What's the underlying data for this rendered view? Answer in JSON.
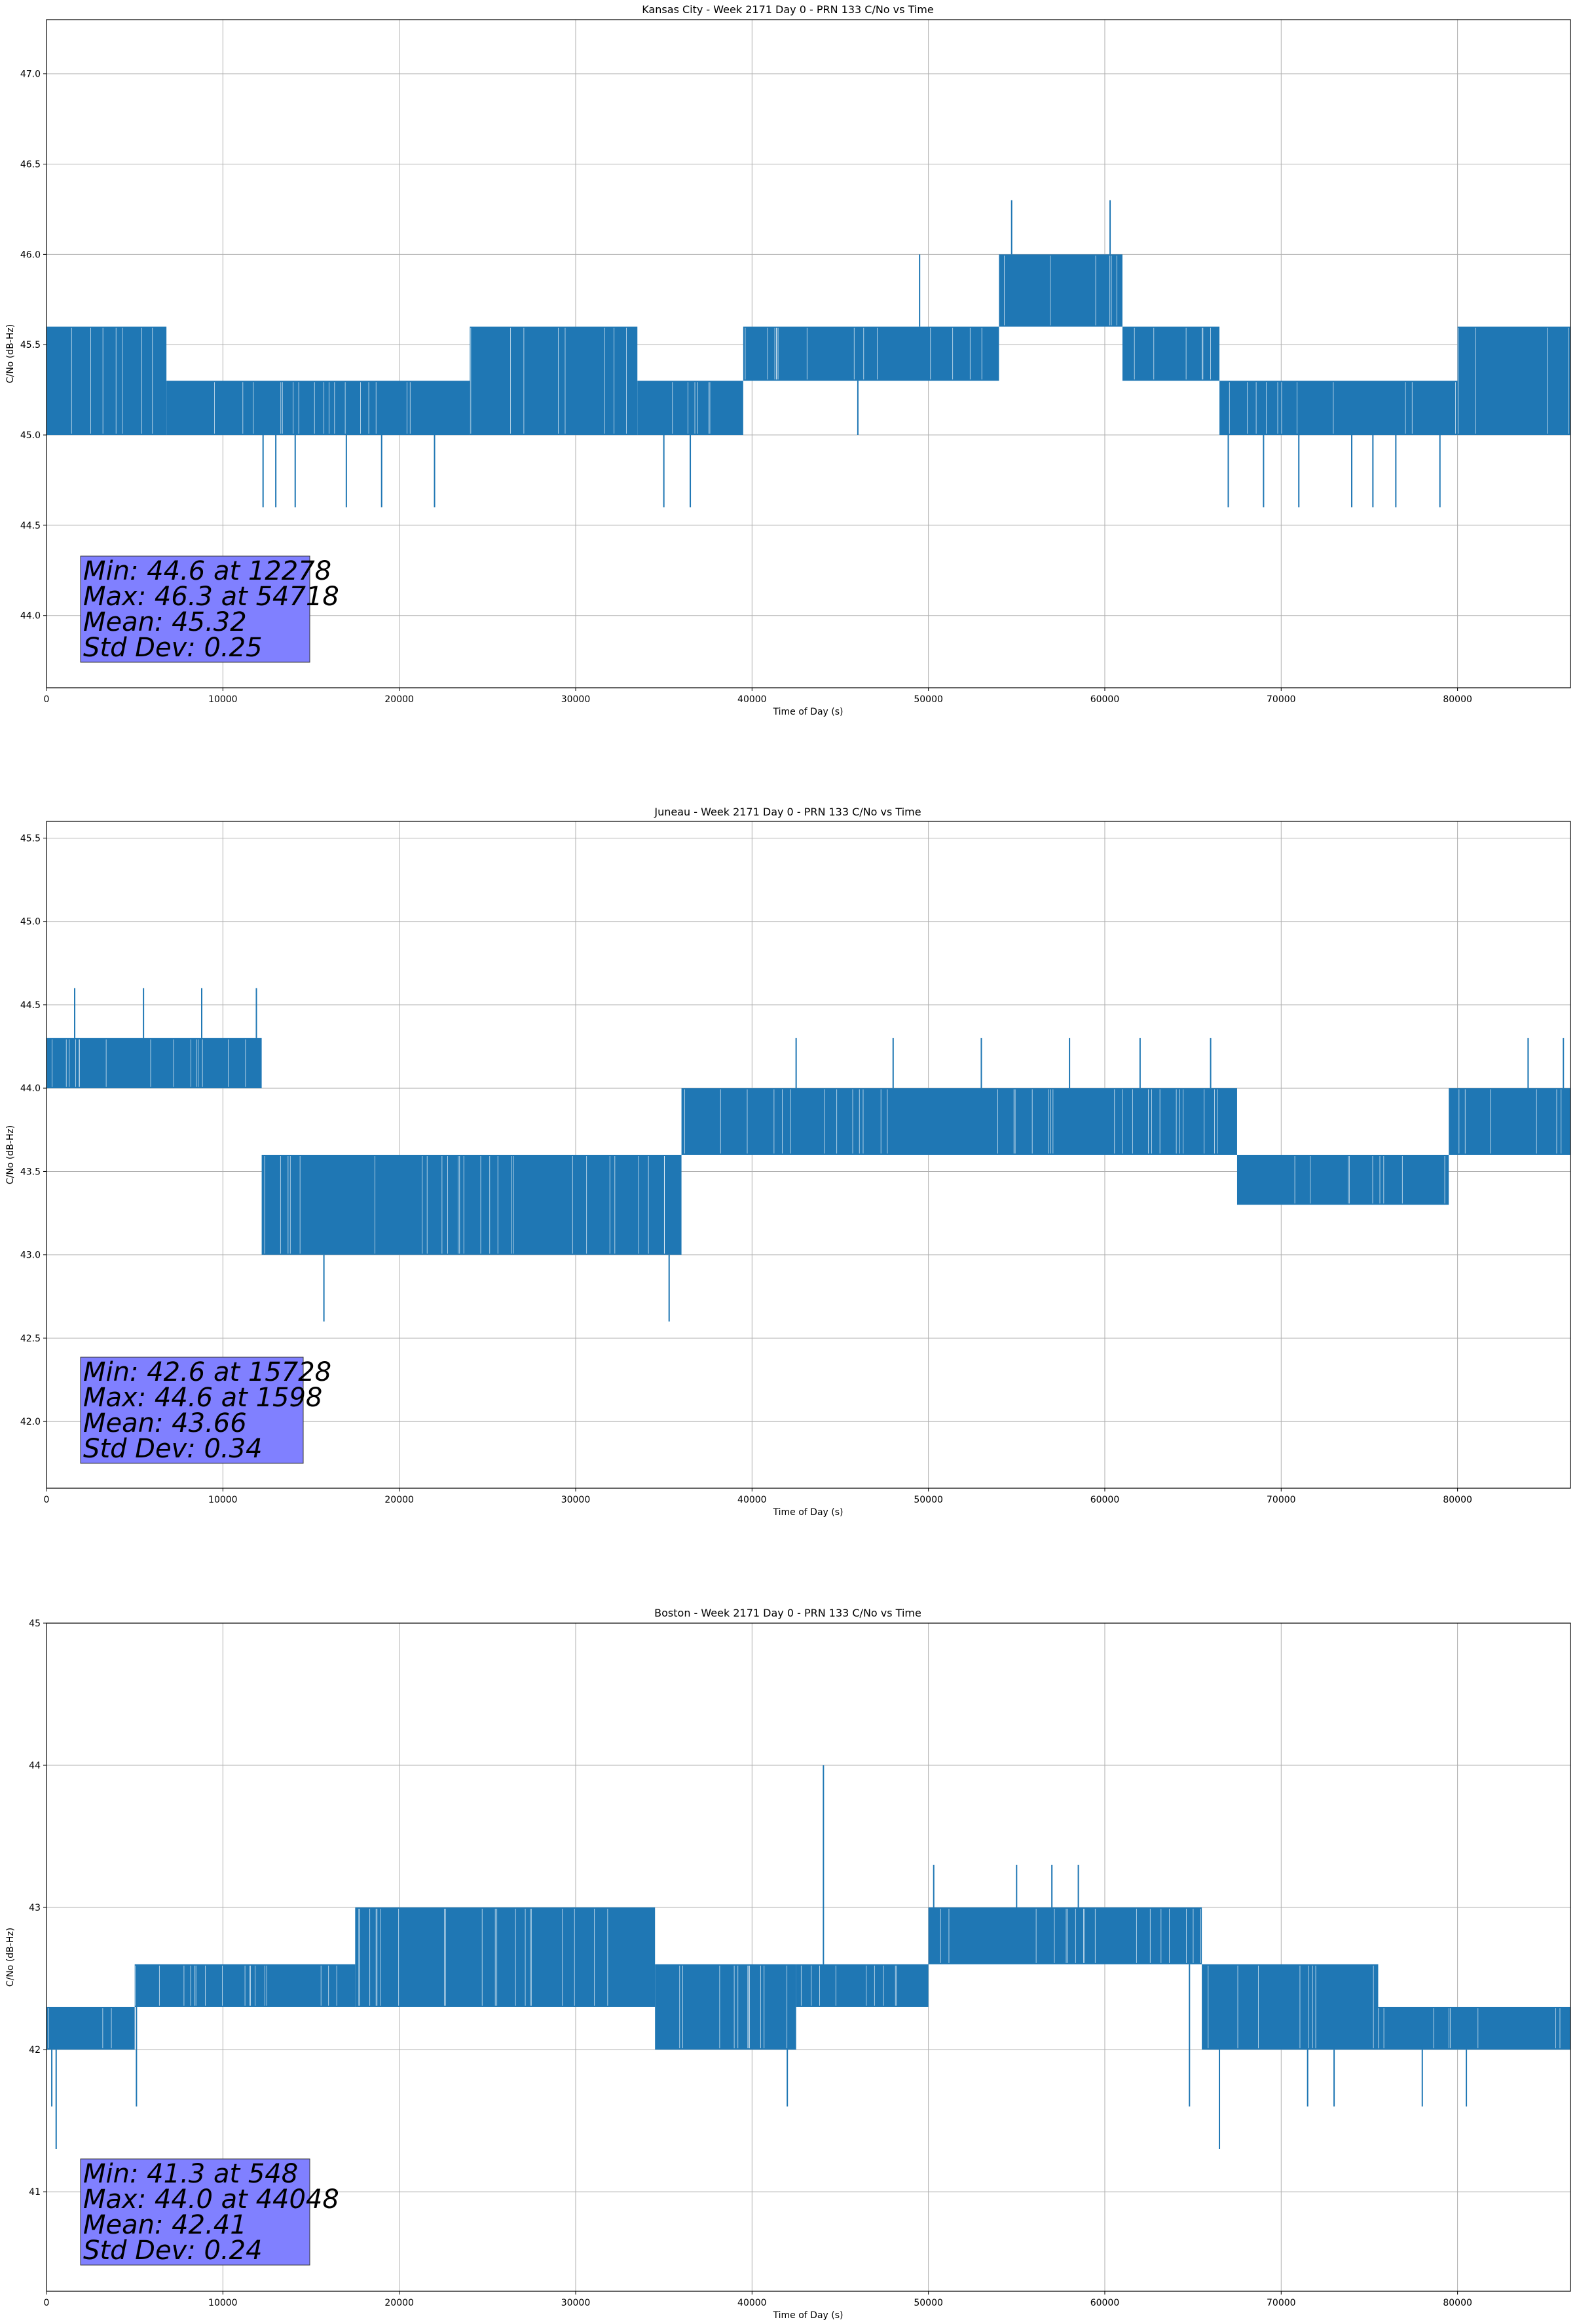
{
  "chart_data": [
    {
      "type": "line",
      "title": "Kansas City - Week 2171 Day 0 - PRN 133 C/No vs Time",
      "xlabel": "Time of Day (s)",
      "ylabel": "C/No (dB-Hz)",
      "xlim": [
        0,
        86400
      ],
      "ylim": [
        43.6,
        47.3
      ],
      "xticks": [
        0,
        10000,
        20000,
        30000,
        40000,
        50000,
        60000,
        70000,
        80000
      ],
      "xtick_labels": [
        "0",
        "10000",
        "20000",
        "30000",
        "40000",
        "50000",
        "60000",
        "70000",
        "80000"
      ],
      "yticks": [
        44.0,
        44.5,
        45.0,
        45.5,
        46.0,
        46.5,
        47.0
      ],
      "ytick_labels": [
        "44.0",
        "44.5",
        "45.0",
        "45.5",
        "46.0",
        "46.5",
        "47.0"
      ],
      "grid": true,
      "color": "#1f77b4",
      "series": [
        {
          "segments": [
            {
              "x": [
                0,
                6800
              ],
              "low": 45.0,
              "high": 45.6
            },
            {
              "x": [
                6800,
                24000
              ],
              "low": 45.0,
              "high": 45.3
            },
            {
              "x": [
                24000,
                33500
              ],
              "low": 45.0,
              "high": 45.6
            },
            {
              "x": [
                33500,
                39500
              ],
              "low": 45.0,
              "high": 45.3
            },
            {
              "x": [
                39500,
                54000
              ],
              "low": 45.3,
              "high": 45.6
            },
            {
              "x": [
                54000,
                61000
              ],
              "low": 45.6,
              "high": 46.0
            },
            {
              "x": [
                61000,
                66500
              ],
              "low": 45.3,
              "high": 45.6
            },
            {
              "x": [
                66500,
                80000
              ],
              "low": 45.0,
              "high": 45.3
            },
            {
              "x": [
                80000,
                86400
              ],
              "low": 45.0,
              "high": 45.6
            }
          ],
          "spikes": [
            {
              "x": 12278,
              "y": 44.6
            },
            {
              "x": 13000,
              "y": 44.6
            },
            {
              "x": 14100,
              "y": 44.6
            },
            {
              "x": 17000,
              "y": 44.6
            },
            {
              "x": 19000,
              "y": 44.6
            },
            {
              "x": 22000,
              "y": 44.6
            },
            {
              "x": 35000,
              "y": 44.6
            },
            {
              "x": 36500,
              "y": 44.6
            },
            {
              "x": 46000,
              "y": 45.0
            },
            {
              "x": 49500,
              "y": 46.0
            },
            {
              "x": 54718,
              "y": 46.3
            },
            {
              "x": 60300,
              "y": 46.3
            },
            {
              "x": 67000,
              "y": 44.6
            },
            {
              "x": 69000,
              "y": 44.6
            },
            {
              "x": 71000,
              "y": 44.6
            },
            {
              "x": 74000,
              "y": 44.6
            },
            {
              "x": 75200,
              "y": 44.6
            },
            {
              "x": 76500,
              "y": 44.6
            },
            {
              "x": 79000,
              "y": 44.6
            }
          ]
        }
      ],
      "stats": {
        "min": "Min: 44.6 at 12278",
        "max": "Max: 46.3 at 54718",
        "mean": "Mean: 45.32",
        "std": "Std Dev: 0.25"
      }
    },
    {
      "type": "line",
      "title": "Juneau - Week 2171 Day 0 - PRN 133 C/No vs Time",
      "xlabel": "Time of Day (s)",
      "ylabel": "C/No (dB-Hz)",
      "xlim": [
        0,
        86400
      ],
      "ylim": [
        41.6,
        45.6
      ],
      "xticks": [
        0,
        10000,
        20000,
        30000,
        40000,
        50000,
        60000,
        70000,
        80000
      ],
      "xtick_labels": [
        "0",
        "10000",
        "20000",
        "30000",
        "40000",
        "50000",
        "60000",
        "70000",
        "80000"
      ],
      "yticks": [
        42.0,
        42.5,
        43.0,
        43.5,
        44.0,
        44.5,
        45.0,
        45.5
      ],
      "ytick_labels": [
        "42.0",
        "42.5",
        "43.0",
        "43.5",
        "44.0",
        "44.5",
        "45.0",
        "45.5"
      ],
      "grid": true,
      "color": "#1f77b4",
      "series": [
        {
          "segments": [
            {
              "x": [
                0,
                12200
              ],
              "low": 44.0,
              "high": 44.3
            },
            {
              "x": [
                12200,
                36000
              ],
              "low": 43.0,
              "high": 43.6
            },
            {
              "x": [
                36000,
                67500
              ],
              "low": 43.6,
              "high": 44.0
            },
            {
              "x": [
                67500,
                79500
              ],
              "low": 43.3,
              "high": 43.6
            },
            {
              "x": [
                79500,
                86400
              ],
              "low": 43.6,
              "high": 44.0
            }
          ],
          "spikes": [
            {
              "x": 1598,
              "y": 44.6
            },
            {
              "x": 5500,
              "y": 44.6
            },
            {
              "x": 8800,
              "y": 44.6
            },
            {
              "x": 11900,
              "y": 44.6
            },
            {
              "x": 15728,
              "y": 42.6
            },
            {
              "x": 35300,
              "y": 42.6
            },
            {
              "x": 42500,
              "y": 44.3
            },
            {
              "x": 48000,
              "y": 44.3
            },
            {
              "x": 53000,
              "y": 44.3
            },
            {
              "x": 58000,
              "y": 44.3
            },
            {
              "x": 62000,
              "y": 44.3
            },
            {
              "x": 66000,
              "y": 44.3
            },
            {
              "x": 84000,
              "y": 44.3
            },
            {
              "x": 86000,
              "y": 44.3
            }
          ]
        }
      ],
      "stats": {
        "min": "Min: 42.6 at 15728",
        "max": "Max: 44.6 at 1598",
        "mean": "Mean: 43.66",
        "std": "Std Dev: 0.34"
      }
    },
    {
      "type": "line",
      "title": "Boston - Week 2171 Day 0 - PRN 133 C/No vs Time",
      "xlabel": "Time of Day (s)",
      "ylabel": "C/No (dB-Hz)",
      "xlim": [
        0,
        86400
      ],
      "ylim": [
        40.3,
        45.0
      ],
      "xticks": [
        0,
        10000,
        20000,
        30000,
        40000,
        50000,
        60000,
        70000,
        80000
      ],
      "xtick_labels": [
        "0",
        "10000",
        "20000",
        "30000",
        "40000",
        "50000",
        "60000",
        "70000",
        "80000"
      ],
      "yticks": [
        41,
        42,
        43,
        44,
        45
      ],
      "ytick_labels": [
        "41",
        "42",
        "43",
        "44",
        "45"
      ],
      "grid": true,
      "color": "#1f77b4",
      "series": [
        {
          "segments": [
            {
              "x": [
                0,
                5000
              ],
              "low": 42.0,
              "high": 42.3
            },
            {
              "x": [
                5000,
                17500
              ],
              "low": 42.3,
              "high": 42.6
            },
            {
              "x": [
                17500,
                34500
              ],
              "low": 42.3,
              "high": 43.0
            },
            {
              "x": [
                34500,
                42500
              ],
              "low": 42.0,
              "high": 42.6
            },
            {
              "x": [
                42500,
                50000
              ],
              "low": 42.3,
              "high": 42.6
            },
            {
              "x": [
                50000,
                65500
              ],
              "low": 42.6,
              "high": 43.0
            },
            {
              "x": [
                65500,
                75500
              ],
              "low": 42.0,
              "high": 42.6
            },
            {
              "x": [
                75500,
                86400
              ],
              "low": 42.0,
              "high": 42.3
            }
          ],
          "spikes": [
            {
              "x": 548,
              "y": 41.3
            },
            {
              "x": 300,
              "y": 41.6
            },
            {
              "x": 5100,
              "y": 41.6
            },
            {
              "x": 42000,
              "y": 41.6
            },
            {
              "x": 44048,
              "y": 44.0
            },
            {
              "x": 50300,
              "y": 43.3
            },
            {
              "x": 55000,
              "y": 43.3
            },
            {
              "x": 57000,
              "y": 43.3
            },
            {
              "x": 58500,
              "y": 43.3
            },
            {
              "x": 64800,
              "y": 41.6
            },
            {
              "x": 66500,
              "y": 41.3
            },
            {
              "x": 71500,
              "y": 41.6
            },
            {
              "x": 73000,
              "y": 41.6
            },
            {
              "x": 78000,
              "y": 41.6
            },
            {
              "x": 80500,
              "y": 41.6
            }
          ]
        }
      ],
      "stats": {
        "min": "Min: 41.3 at 548",
        "max": "Max: 44.0 at 44048",
        "mean": "Mean: 42.41",
        "std": "Std Dev: 0.24"
      }
    }
  ]
}
